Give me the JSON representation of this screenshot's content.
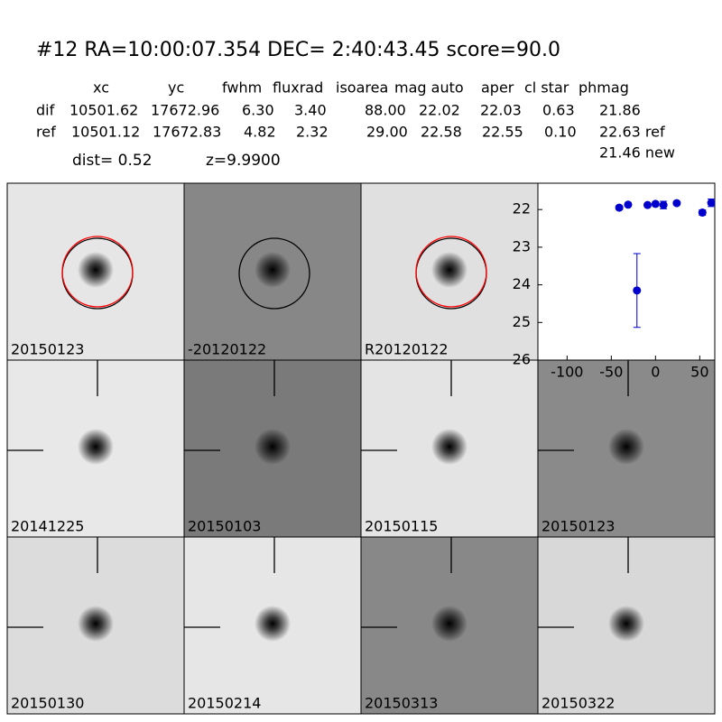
{
  "header": {
    "title": "#12   RA=10:00:07.354 DEC= 2:40:43.45      score=90.0",
    "dist": "dist=  0.52",
    "z": "z=9.9900",
    "note": "21.46 new"
  },
  "table": {
    "columns": [
      "xc",
      "yc",
      "fwhm",
      "fluxrad",
      "isoarea",
      "mag auto",
      "aper",
      "cl star",
      "phmag"
    ],
    "rows": [
      [
        "dif",
        "10501.62",
        "17672.96",
        "6.30",
        "3.40",
        "88.00",
        "22.02",
        "22.03",
        "0.63",
        "21.86"
      ],
      [
        "ref",
        "10501.12",
        "17672.83",
        "4.82",
        "2.32",
        "29.00",
        "22.58",
        "22.55",
        "0.10",
        "22.63 ref"
      ]
    ]
  },
  "stamps": [
    {
      "label": "20150123",
      "background": "#e6e6e6",
      "circles": [
        "#000000",
        "#ff0000"
      ]
    },
    {
      "label": "-20120122",
      "background": "#878787",
      "circles": [
        "#000000"
      ]
    },
    {
      "label": "R20120122",
      "background": "#e0e0e0",
      "circles": [
        "#000000",
        "#ff0000"
      ]
    },
    null,
    {
      "label": "20141225",
      "background": "#e8e8e8",
      "crosshair": true
    },
    {
      "label": "20150103",
      "background": "#7a7a7a",
      "crosshair": true
    },
    {
      "label": "20150115",
      "background": "#e4e4e4",
      "crosshair": true
    },
    {
      "label": "20150123",
      "background": "#8a8a8a",
      "crosshair": true,
      "label_color": "#ff0000"
    },
    {
      "label": "20150130",
      "background": "#dcdcdc",
      "crosshair": true
    },
    {
      "label": "20150214",
      "background": "#e6e6e6",
      "crosshair": true
    },
    {
      "label": "20150313",
      "background": "#888888",
      "crosshair": true
    },
    {
      "label": "20150322",
      "background": "#d8d8d8",
      "crosshair": true
    }
  ],
  "chart_data": {
    "type": "scatter",
    "color": "#0000cc",
    "x": [
      -41,
      -31,
      -21,
      -9,
      0,
      9,
      24,
      53,
      63
    ],
    "values": [
      21.95,
      21.87,
      24.15,
      21.88,
      21.85,
      21.88,
      21.83,
      22.08,
      21.82
    ],
    "errors": [
      0.05,
      0.04,
      0.98,
      0.04,
      0.05,
      0.1,
      0.04,
      0.07,
      0.1
    ],
    "xlim": [
      -133,
      67
    ],
    "ylim": [
      21.3,
      26
    ],
    "y_inverted": true,
    "xticks": [
      -100,
      -50,
      0,
      50
    ],
    "yticks": [
      22,
      23,
      24,
      25,
      26
    ]
  }
}
